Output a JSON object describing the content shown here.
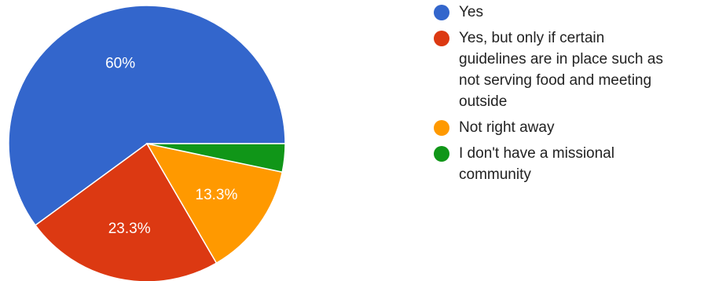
{
  "chart_data": {
    "type": "pie",
    "slices": [
      {
        "label": "Yes",
        "value": 60,
        "display": "60%",
        "color": "#3366cc"
      },
      {
        "label": "Yes, but only if certain guidelines are in place such as not serving food and meeting outside",
        "value": 23.3,
        "display": "23.3%",
        "color": "#dc3912"
      },
      {
        "label": "Not right away",
        "value": 13.3,
        "display": "13.3%",
        "color": "#ff9900"
      },
      {
        "label": "I don't have a missional community",
        "value": 3.3,
        "display": "",
        "color": "#109618"
      }
    ],
    "legend_position": "right"
  },
  "legend": {
    "items": [
      {
        "label": "Yes",
        "lines": [
          "Yes"
        ],
        "color": "#3366cc"
      },
      {
        "label": "Yes, but only if certain guidelines are in place such as not serving food and meeting outside",
        "lines": [
          "Yes, but only if certain",
          "guidelines are in place such as",
          "not serving food and meeting",
          "outside"
        ],
        "color": "#dc3912"
      },
      {
        "label": "Not right away",
        "lines": [
          "Not right away"
        ],
        "color": "#ff9900"
      },
      {
        "label": "I don't have a missional community",
        "lines": [
          "I don't have a missional",
          "community"
        ],
        "color": "#109618"
      }
    ]
  }
}
